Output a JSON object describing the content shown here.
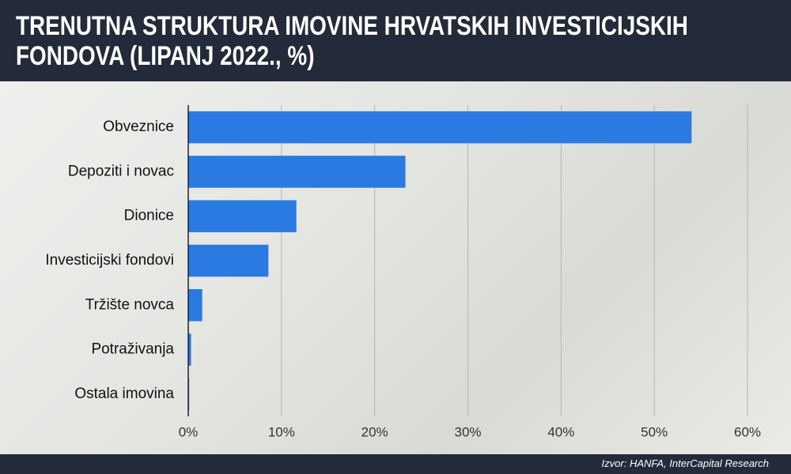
{
  "chart_data": {
    "type": "bar",
    "orientation": "horizontal",
    "title": "TRENUTNA STRUKTURA IMOVINE HRVATSKIH INVESTICIJSKIH FONDOVA (LIPANJ 2022., %)",
    "source": "Izvor: HANFA, InterCapital Research",
    "categories": [
      "Obveznice",
      "Depoziti i novac",
      "Dionice",
      "Investicijski fondovi",
      "Tržište novca",
      "Potraživanja",
      "Ostala imovina"
    ],
    "values": [
      54.0,
      23.3,
      11.6,
      8.6,
      1.5,
      0.3,
      0.1
    ],
    "color": "#2a7ae2",
    "xlim": [
      0,
      60
    ],
    "xticks": [
      {
        "value": 0,
        "label": "0%"
      },
      {
        "value": 10,
        "label": "10%"
      },
      {
        "value": 20,
        "label": "20%"
      },
      {
        "value": 30,
        "label": "30%"
      },
      {
        "value": 40,
        "label": "40%"
      },
      {
        "value": 50,
        "label": "50%"
      },
      {
        "value": 60,
        "label": "60%"
      }
    ],
    "grid": true
  }
}
